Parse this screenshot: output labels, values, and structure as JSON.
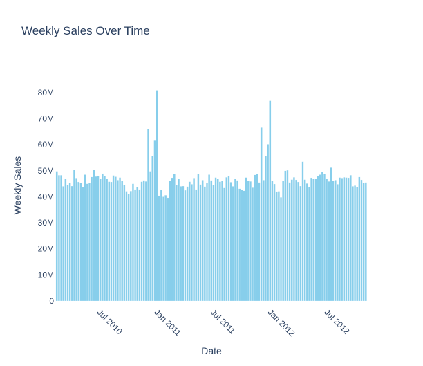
{
  "chart_data": {
    "type": "bar",
    "title": "Weekly Sales Over Time",
    "xlabel": "Date",
    "ylabel": "Weekly Sales",
    "x_tick_labels": [
      "Jul 2010",
      "Jan 2011",
      "Jul 2011",
      "Jan 2012",
      "Jul 2012"
    ],
    "x_tick_dates": [
      "2010-07-01",
      "2011-01-01",
      "2011-07-01",
      "2012-01-01",
      "2012-07-01"
    ],
    "y_tick_labels": [
      "0",
      "10M",
      "20M",
      "30M",
      "40M",
      "50M",
      "60M",
      "70M",
      "80M"
    ],
    "y_tick_values": [
      0,
      10000000,
      20000000,
      30000000,
      40000000,
      50000000,
      60000000,
      70000000,
      80000000
    ],
    "xlim": [
      "2010-01-31",
      "2012-11-01"
    ],
    "ylim": [
      0,
      89000000
    ],
    "grid": false,
    "bar_color": "#87ceeb",
    "x": [
      "2010-02-05",
      "2010-02-12",
      "2010-02-19",
      "2010-02-26",
      "2010-03-05",
      "2010-03-12",
      "2010-03-19",
      "2010-03-26",
      "2010-04-02",
      "2010-04-09",
      "2010-04-16",
      "2010-04-23",
      "2010-04-30",
      "2010-05-07",
      "2010-05-14",
      "2010-05-21",
      "2010-05-28",
      "2010-06-04",
      "2010-06-11",
      "2010-06-18",
      "2010-06-25",
      "2010-07-02",
      "2010-07-09",
      "2010-07-16",
      "2010-07-23",
      "2010-07-30",
      "2010-08-06",
      "2010-08-13",
      "2010-08-20",
      "2010-08-27",
      "2010-09-03",
      "2010-09-10",
      "2010-09-17",
      "2010-09-24",
      "2010-10-01",
      "2010-10-08",
      "2010-10-15",
      "2010-10-22",
      "2010-10-29",
      "2010-11-05",
      "2010-11-12",
      "2010-11-19",
      "2010-11-26",
      "2010-12-03",
      "2010-12-10",
      "2010-12-17",
      "2010-12-24",
      "2010-12-31",
      "2011-01-07",
      "2011-01-14",
      "2011-01-21",
      "2011-01-28",
      "2011-02-04",
      "2011-02-11",
      "2011-02-18",
      "2011-02-25",
      "2011-03-04",
      "2011-03-11",
      "2011-03-18",
      "2011-03-25",
      "2011-04-01",
      "2011-04-08",
      "2011-04-15",
      "2011-04-22",
      "2011-04-29",
      "2011-05-06",
      "2011-05-13",
      "2011-05-20",
      "2011-05-27",
      "2011-06-03",
      "2011-06-10",
      "2011-06-17",
      "2011-06-24",
      "2011-07-01",
      "2011-07-08",
      "2011-07-15",
      "2011-07-22",
      "2011-07-29",
      "2011-08-05",
      "2011-08-12",
      "2011-08-19",
      "2011-08-26",
      "2011-09-02",
      "2011-09-09",
      "2011-09-16",
      "2011-09-23",
      "2011-09-30",
      "2011-10-07",
      "2011-10-14",
      "2011-10-21",
      "2011-10-28",
      "2011-11-04",
      "2011-11-11",
      "2011-11-18",
      "2011-11-25",
      "2011-12-02",
      "2011-12-09",
      "2011-12-16",
      "2011-12-23",
      "2011-12-30",
      "2012-01-06",
      "2012-01-13",
      "2012-01-20",
      "2012-01-27",
      "2012-02-03",
      "2012-02-10",
      "2012-02-17",
      "2012-02-24",
      "2012-03-02",
      "2012-03-09",
      "2012-03-16",
      "2012-03-23",
      "2012-03-30",
      "2012-04-06",
      "2012-04-13",
      "2012-04-20",
      "2012-04-27",
      "2012-05-04",
      "2012-05-11",
      "2012-05-18",
      "2012-05-25",
      "2012-06-01",
      "2012-06-08",
      "2012-06-15",
      "2012-06-22",
      "2012-06-29",
      "2012-07-06",
      "2012-07-13",
      "2012-07-20",
      "2012-07-27",
      "2012-08-03",
      "2012-08-10",
      "2012-08-17",
      "2012-08-24",
      "2012-08-31",
      "2012-09-07",
      "2012-09-14",
      "2012-09-21",
      "2012-09-28",
      "2012-10-05",
      "2012-10-12",
      "2012-10-19",
      "2012-10-26"
    ],
    "values": [
      49800000,
      48300000,
      48300000,
      44000000,
      46800000,
      44500000,
      45200000,
      44100000,
      50400000,
      47200000,
      45700000,
      45300000,
      43800000,
      48500000,
      45000000,
      45200000,
      47600000,
      50300000,
      47800000,
      47900000,
      46900000,
      48900000,
      47900000,
      47000000,
      45800000,
      45700000,
      48200000,
      47700000,
      46400000,
      47400000,
      46000000,
      44500000,
      42100000,
      41000000,
      42200000,
      45000000,
      42800000,
      43700000,
      42800000,
      45800000,
      46300000,
      45900000,
      66000000,
      49800000,
      55700000,
      61600000,
      80900000,
      40400000,
      42700000,
      40000000,
      40600000,
      39600000,
      46100000,
      47300000,
      48800000,
      44400000,
      46900000,
      44000000,
      44100000,
      42500000,
      43900000,
      45800000,
      44800000,
      47200000,
      42800000,
      48700000,
      44700000,
      46400000,
      43900000,
      45200000,
      48500000,
      46300000,
      44600000,
      47400000,
      46900000,
      45800000,
      46200000,
      43400000,
      47500000,
      47900000,
      45600000,
      44000000,
      46800000,
      46300000,
      43100000,
      42600000,
      42300000,
      47400000,
      46200000,
      45900000,
      43500000,
      48400000,
      48700000,
      45500000,
      66600000,
      46400000,
      55600000,
      60200000,
      76900000,
      46000000,
      44900000,
      42000000,
      42100000,
      39800000,
      46100000,
      50000000,
      50200000,
      45500000,
      46600000,
      47500000,
      46500000,
      45700000,
      44100000,
      53500000,
      46600000,
      45100000,
      43800000,
      47300000,
      47000000,
      46800000,
      47900000,
      48500000,
      49500000,
      48700000,
      46900000,
      45900000,
      51200000,
      46000000,
      46400000,
      44800000,
      47400000,
      47200000,
      47500000,
      47400000,
      47300000,
      48300000,
      44000000,
      44300000,
      43700000,
      47600000,
      46500000,
      45200000,
      45500000
    ]
  }
}
